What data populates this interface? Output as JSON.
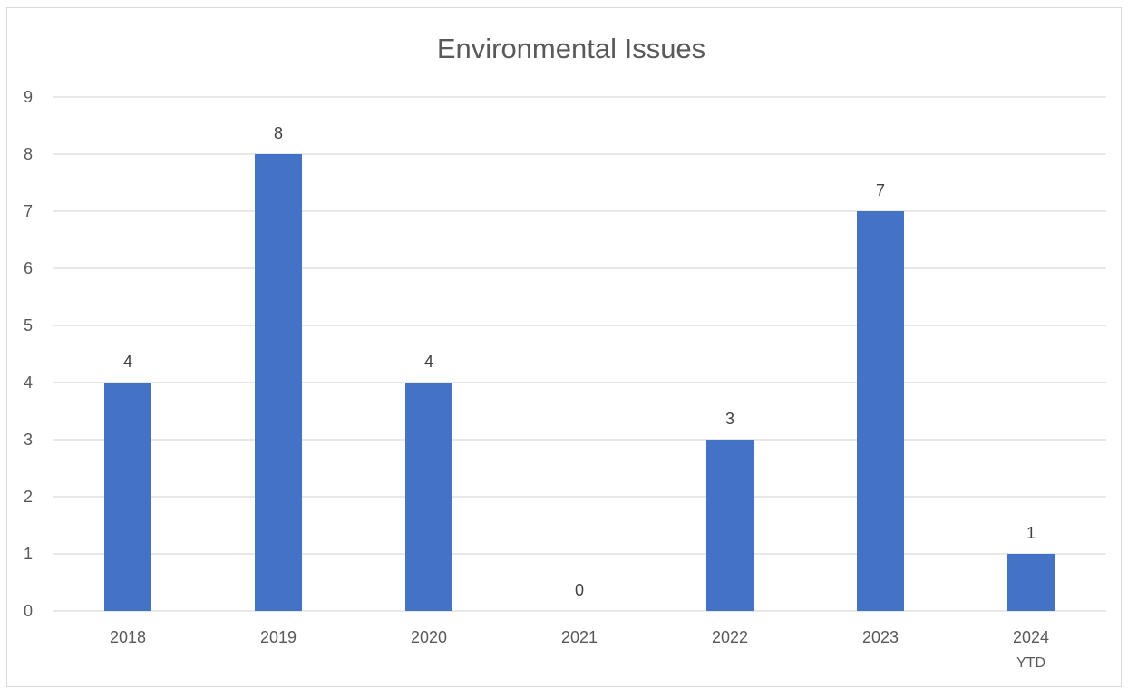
{
  "chart_data": {
    "type": "bar",
    "title": "Environmental Issues",
    "xlabel": "",
    "ylabel": "",
    "categories": [
      [
        "2018"
      ],
      [
        "2019"
      ],
      [
        "2020"
      ],
      [
        "2021"
      ],
      [
        "2022"
      ],
      [
        "2023"
      ],
      [
        "2024",
        "YTD"
      ]
    ],
    "values": [
      4,
      8,
      4,
      0,
      3,
      7,
      1
    ],
    "ylim": [
      0,
      9
    ],
    "yticks": [
      0,
      1,
      2,
      3,
      4,
      5,
      6,
      7,
      8,
      9
    ],
    "grid": true,
    "legend": "none",
    "data_labels": true,
    "bar_color": "#4472C4",
    "grid_color": "#d9d9d9"
  }
}
